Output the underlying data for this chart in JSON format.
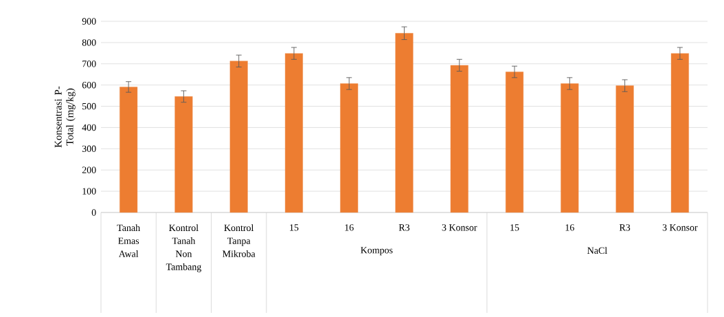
{
  "chart_data": {
    "type": "bar",
    "ylabel": "Konsentrasi P-Total (mg/kg)",
    "categories": [
      "Tanah Emas Awal",
      "Kontrol Tanah Non Tambang",
      "Kontrol Tanpa Mikroba",
      "15",
      "16",
      "R3",
      "3 Konsor",
      "15",
      "16",
      "R3",
      "3 Konsor"
    ],
    "values": [
      591,
      546,
      713,
      749,
      607,
      844,
      693,
      662,
      607,
      597,
      749
    ],
    "errors": [
      25,
      27,
      28,
      28,
      28,
      30,
      28,
      27,
      28,
      28,
      28
    ],
    "color": "#ed7d31",
    "annotations": [
      "Kompos",
      "NaCl"
    ],
    "ylim": [
      0,
      900
    ],
    "yticks": [
      0,
      100,
      200,
      300,
      400,
      500,
      600,
      700,
      800,
      900
    ],
    "grid": "y"
  }
}
